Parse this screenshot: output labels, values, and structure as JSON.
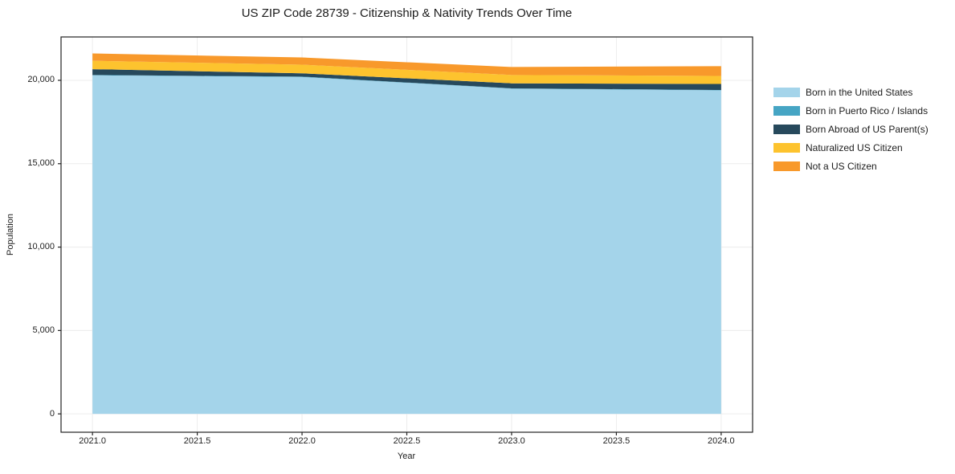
{
  "chart_data": {
    "type": "area",
    "stacked": true,
    "title": "US ZIP Code 28739 - Citizenship & Nativity Trends Over Time",
    "xlabel": "Year",
    "ylabel": "Population",
    "x": [
      2021.0,
      2022.0,
      2023.0,
      2024.0
    ],
    "series": [
      {
        "name": "Born in the United States",
        "color": "#a4d4ea",
        "values": [
          20300,
          20200,
          19500,
          19400
        ]
      },
      {
        "name": "Born in Puerto Rico / Islands",
        "color": "#46a5c4",
        "values": [
          20,
          20,
          20,
          20
        ]
      },
      {
        "name": "Born Abroad of US Parent(s)",
        "color": "#27495c",
        "values": [
          350,
          200,
          300,
          360
        ]
      },
      {
        "name": "Naturalized US Citizen",
        "color": "#fdc32e",
        "values": [
          500,
          520,
          500,
          480
        ]
      },
      {
        "name": "Not a US Citizen",
        "color": "#f8992b",
        "values": [
          440,
          430,
          480,
          590
        ]
      }
    ],
    "xlim": [
      2020.85,
      2024.15
    ],
    "ylim": [
      -1100,
      22600
    ],
    "xticks": [
      2021.0,
      2021.5,
      2022.0,
      2022.5,
      2023.0,
      2023.5,
      2024.0
    ],
    "xtick_labels": [
      "2021.0",
      "2021.5",
      "2022.0",
      "2022.5",
      "2023.0",
      "2023.5",
      "2024.0"
    ],
    "yticks": [
      0,
      5000,
      10000,
      15000,
      20000
    ],
    "ytick_labels": [
      "0",
      "5,000",
      "10,000",
      "15,000",
      "20,000"
    ],
    "grid": true,
    "grid_color": "#ececec",
    "spine_color": "#222222",
    "legend_position": "right of plot"
  }
}
